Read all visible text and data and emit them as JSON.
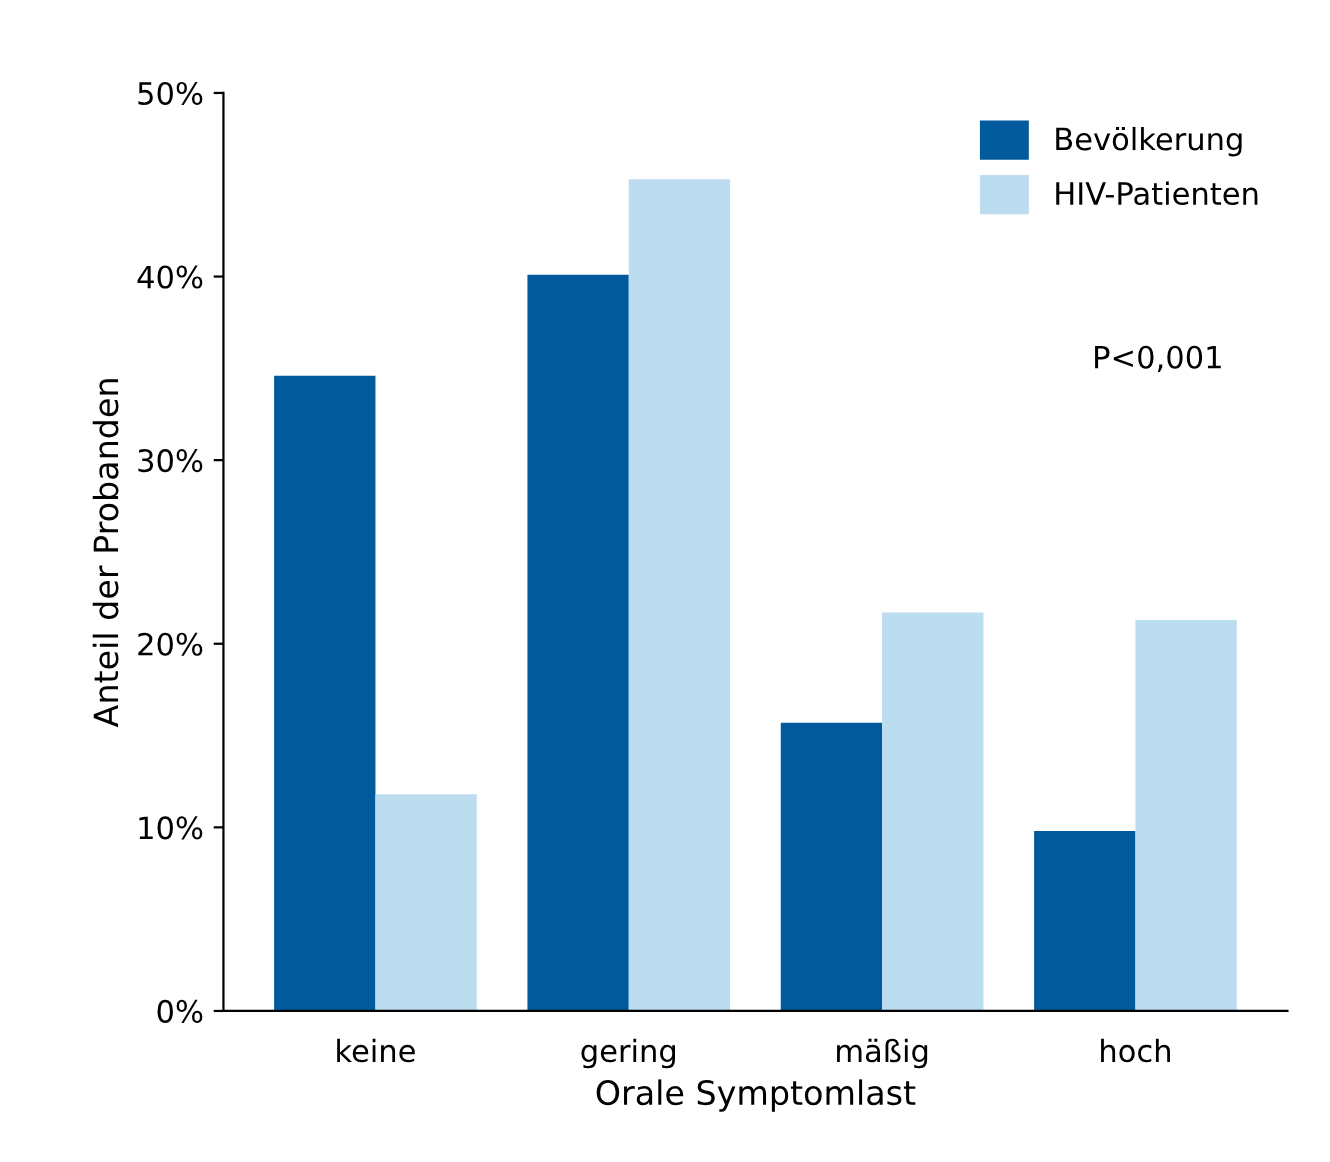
{
  "chart_data": {
    "type": "bar",
    "xlabel": "Orale Symptomlast",
    "ylabel": "Anteil der Probanden",
    "categories": [
      "keine",
      "gering",
      "mäßig",
      "hoch"
    ],
    "series": [
      {
        "name": "Bevölkerung",
        "color": "#005a9c",
        "values": [
          34.6,
          40.1,
          15.7,
          9.8
        ]
      },
      {
        "name": "HIV-Patienten",
        "color": "#bcdcf0",
        "values": [
          11.8,
          45.3,
          21.7,
          21.3
        ]
      }
    ],
    "ylim": [
      0,
      50
    ],
    "yticks": [
      {
        "value": 0,
        "label": "0%"
      },
      {
        "value": 10,
        "label": "10%"
      },
      {
        "value": 20,
        "label": "20%"
      },
      {
        "value": 30,
        "label": "30%"
      },
      {
        "value": 40,
        "label": "40%"
      },
      {
        "value": 50,
        "label": "50%"
      }
    ],
    "annotations": [
      "P<0,001"
    ],
    "legend": "top right",
    "grid": false
  }
}
